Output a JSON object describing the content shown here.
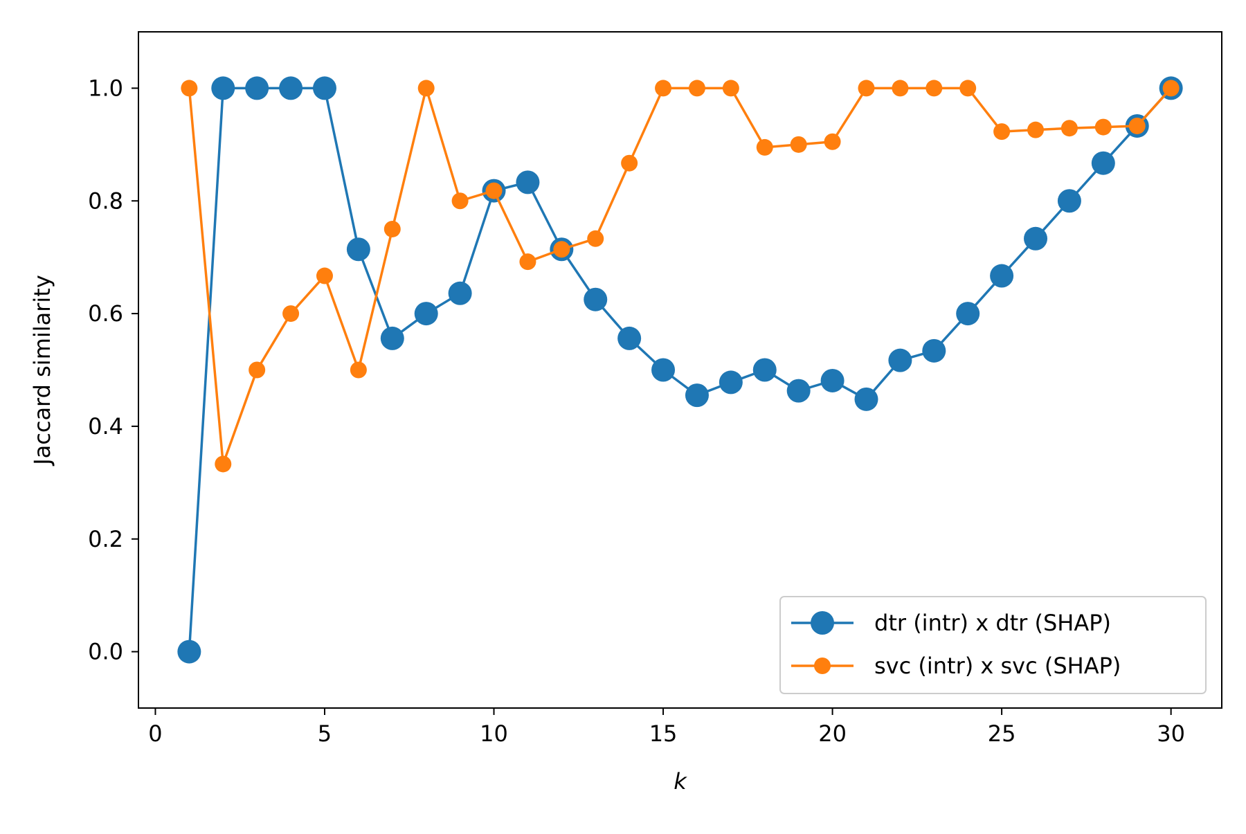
{
  "chart_data": {
    "type": "line",
    "title": "",
    "xlabel": "k",
    "ylabel": "Jaccard similarity",
    "xlim": [
      -0.5,
      31.5
    ],
    "ylim": [
      -0.1,
      1.1
    ],
    "xticks": [
      0,
      5,
      10,
      15,
      20,
      25,
      30
    ],
    "xtick_labels": [
      "0",
      "5",
      "10",
      "15",
      "20",
      "25",
      "30"
    ],
    "yticks": [
      0.0,
      0.2,
      0.4,
      0.6,
      0.8,
      1.0
    ],
    "ytick_labels": [
      "0.0",
      "0.2",
      "0.4",
      "0.6",
      "0.8",
      "1.0"
    ],
    "grid": false,
    "legend_position": "lower-right",
    "x": [
      1,
      2,
      3,
      4,
      5,
      6,
      7,
      8,
      9,
      10,
      11,
      12,
      13,
      14,
      15,
      16,
      17,
      18,
      19,
      20,
      21,
      22,
      23,
      24,
      25,
      26,
      27,
      28,
      29,
      30
    ],
    "series": [
      {
        "name": "dtr (intr) x dtr (SHAP)",
        "color": "#1f77b4",
        "marker": "large-circle",
        "values": [
          0.0,
          1.0,
          1.0,
          1.0,
          1.0,
          0.714,
          0.556,
          0.6,
          0.636,
          0.818,
          0.833,
          0.714,
          0.625,
          0.556,
          0.5,
          0.455,
          0.478,
          0.5,
          0.463,
          0.481,
          0.448,
          0.517,
          0.534,
          0.6,
          0.667,
          0.733,
          0.8,
          0.867,
          0.933,
          1.0
        ]
      },
      {
        "name": "svc (intr) x svc (SHAP)",
        "color": "#ff7f0e",
        "marker": "small-circle",
        "values": [
          1.0,
          0.333,
          0.5,
          0.6,
          0.667,
          0.5,
          0.75,
          1.0,
          0.8,
          0.818,
          0.692,
          0.714,
          0.733,
          0.867,
          1.0,
          1.0,
          1.0,
          0.895,
          0.9,
          0.905,
          1.0,
          1.0,
          1.0,
          1.0,
          0.923,
          0.926,
          0.929,
          0.931,
          0.933,
          1.0
        ]
      }
    ]
  }
}
